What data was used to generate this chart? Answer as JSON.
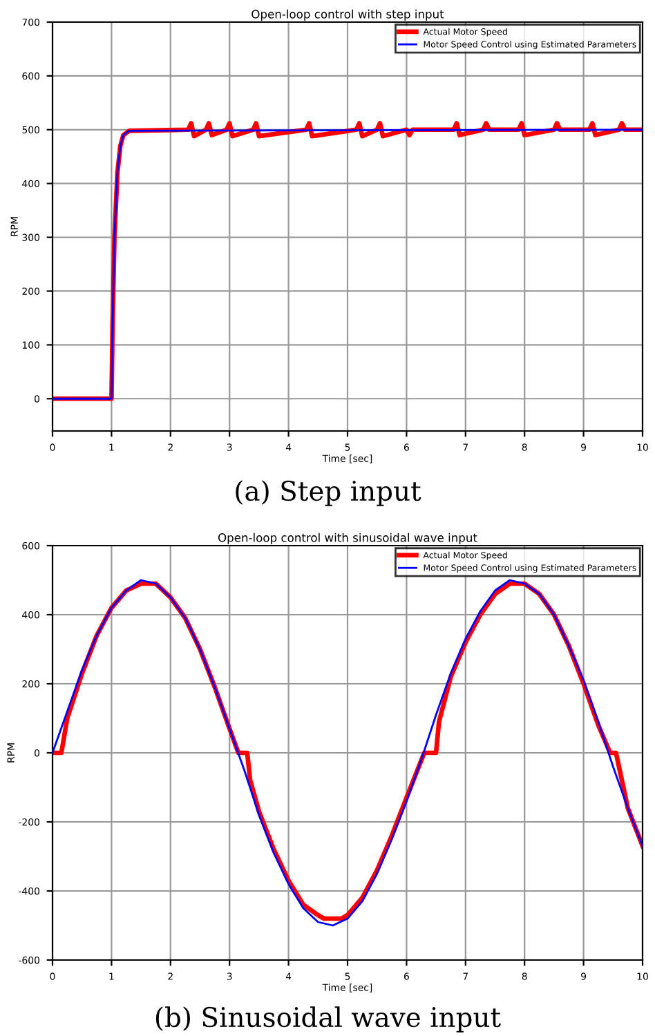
{
  "chart_data": [
    {
      "type": "line",
      "title": "Open-loop control with step input",
      "xlabel": "Time [sec]",
      "ylabel": "RPM",
      "xlim": [
        0,
        10
      ],
      "ylim": [
        -60,
        700
      ],
      "xticks": [
        0,
        1,
        2,
        3,
        4,
        5,
        6,
        7,
        8,
        9,
        10
      ],
      "yticks": [
        0,
        100,
        200,
        300,
        400,
        500,
        600,
        700
      ],
      "grid": true,
      "legend": "top right",
      "line_style": "solid",
      "marker": "none",
      "annotations": [
        "(a) Step input"
      ],
      "series": [
        {
          "name": "Actual Motor Speed",
          "color": "#ff0000",
          "x": [
            0,
            1,
            1.02,
            1.05,
            1.1,
            1.15,
            1.2,
            1.3,
            2.3,
            2.35,
            2.4,
            2.6,
            2.65,
            2.7,
            2.95,
            3.0,
            3.05,
            3.4,
            3.45,
            3.5,
            4.3,
            4.35,
            4.4,
            5.15,
            5.2,
            5.25,
            5.5,
            5.55,
            5.6,
            6.0,
            6.05,
            6.1,
            6.8,
            6.85,
            6.9,
            7.3,
            7.35,
            7.4,
            7.9,
            7.95,
            8.0,
            8.5,
            8.55,
            8.6,
            9.1,
            9.15,
            9.2,
            9.6,
            9.65,
            9.7,
            10
          ],
          "values": [
            0,
            0,
            150,
            300,
            420,
            470,
            490,
            498,
            500,
            512,
            488,
            500,
            512,
            490,
            500,
            512,
            488,
            500,
            512,
            488,
            500,
            512,
            488,
            500,
            512,
            488,
            500,
            512,
            488,
            500,
            490,
            500,
            500,
            512,
            490,
            500,
            512,
            500,
            500,
            512,
            490,
            500,
            512,
            500,
            500,
            512,
            490,
            500,
            512,
            500,
            500
          ]
        },
        {
          "name": "Motor Speed Control using Estimated Parameters",
          "color": "#0000ff",
          "x": [
            0,
            1,
            1.02,
            1.05,
            1.1,
            1.15,
            1.2,
            1.3,
            10
          ],
          "values": [
            0,
            0,
            150,
            300,
            420,
            470,
            490,
            498,
            500
          ]
        }
      ]
    },
    {
      "type": "line",
      "title": "Open-loop control with sinusoidal wave input",
      "xlabel": "Time [sec]",
      "ylabel": "RPM",
      "xlim": [
        0,
        10
      ],
      "ylim": [
        -600,
        600
      ],
      "xticks": [
        0,
        1,
        2,
        3,
        4,
        5,
        6,
        7,
        8,
        9,
        10
      ],
      "yticks": [
        -600,
        -400,
        -200,
        0,
        200,
        400,
        600
      ],
      "grid": true,
      "legend": "top right",
      "line_style": "solid",
      "marker": "none",
      "annotations": [
        "(b) Sinusoidal wave input"
      ],
      "series": [
        {
          "name": "Actual Motor Speed",
          "color": "#ff0000",
          "x": [
            0,
            0.15,
            0.25,
            0.5,
            0.75,
            1,
            1.25,
            1.5,
            1.75,
            2,
            2.25,
            2.5,
            2.75,
            3,
            3.15,
            3.3,
            3.35,
            3.5,
            3.75,
            4,
            4.25,
            4.5,
            4.6,
            4.9,
            5,
            5.25,
            5.5,
            5.75,
            6,
            6.3,
            6.5,
            6.55,
            6.75,
            7,
            7.25,
            7.5,
            7.75,
            8,
            8.25,
            8.5,
            8.75,
            9,
            9.25,
            9.45,
            9.55,
            9.75,
            10
          ],
          "values": [
            0,
            0,
            100,
            230,
            340,
            420,
            470,
            490,
            490,
            450,
            390,
            300,
            190,
            70,
            0,
            0,
            -80,
            -170,
            -280,
            -370,
            -440,
            -470,
            -480,
            -480,
            -470,
            -420,
            -340,
            -240,
            -130,
            0,
            0,
            90,
            220,
            320,
            400,
            460,
            490,
            490,
            460,
            400,
            310,
            200,
            80,
            0,
            0,
            -160,
            -270
          ]
        },
        {
          "name": "Motor Speed Control using Estimated Parameters",
          "color": "#0000ff",
          "x": [
            0,
            0.25,
            0.5,
            0.75,
            1,
            1.25,
            1.5,
            1.75,
            2,
            2.25,
            2.5,
            2.75,
            3,
            3.25,
            3.5,
            3.75,
            4,
            4.25,
            4.5,
            4.75,
            5,
            5.25,
            5.5,
            5.75,
            6,
            6.25,
            6.5,
            6.75,
            7,
            7.25,
            7.5,
            7.75,
            8,
            8.25,
            8.5,
            8.75,
            9,
            9.25,
            9.5,
            9.75,
            10
          ],
          "values": [
            0,
            120,
            240,
            340,
            420,
            470,
            500,
            490,
            450,
            390,
            300,
            190,
            70,
            -50,
            -180,
            -290,
            -380,
            -450,
            -490,
            -500,
            -480,
            -430,
            -350,
            -250,
            -140,
            -20,
            110,
            230,
            330,
            410,
            470,
            500,
            490,
            460,
            400,
            310,
            210,
            90,
            -40,
            -160,
            -270
          ]
        }
      ]
    }
  ]
}
